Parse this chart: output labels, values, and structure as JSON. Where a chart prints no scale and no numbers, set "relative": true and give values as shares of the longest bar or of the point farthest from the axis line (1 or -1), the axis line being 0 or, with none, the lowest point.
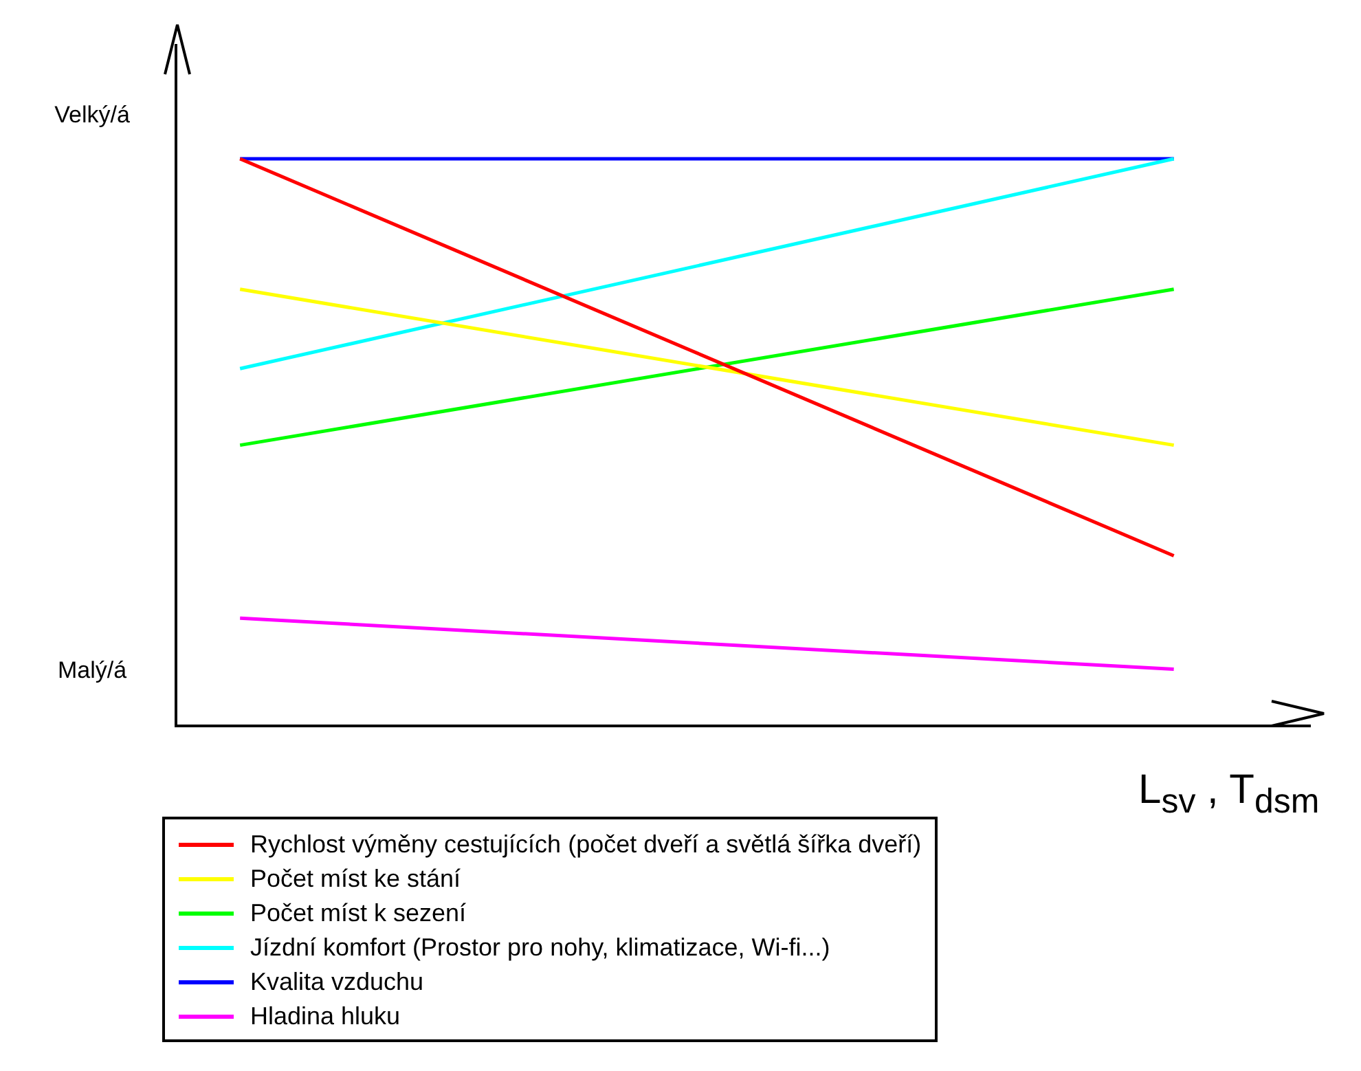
{
  "chart_data": {
    "type": "line",
    "relative": true,
    "xlabel": "L$_{sv}$ , T$_{dsm}$",
    "categories": [
      null,
      null
    ],
    "annotations": [
      "Velký/á",
      "Malý/á"
    ],
    "legend": "bottom",
    "marker": "none",
    "line_style": "solid",
    "series": [
      {
        "name": "Rychlost výměny cestujících (počet dveří a světlá šířka dveří)",
        "color": "#ff0000",
        "values": [
          1,
          0.3
        ]
      },
      {
        "name": "Počet míst ke stání",
        "color": "#ffff00",
        "values": [
          0.77,
          0.495
        ]
      },
      {
        "name": "Počet míst k sezení",
        "color": "#00ff00",
        "values": [
          0.495,
          0.77
        ]
      },
      {
        "name": "Jízdní komfort (Prostor pro nohy, klimatizace, Wi-fi...)",
        "color": "#00ffff",
        "values": [
          0.63,
          1
        ]
      },
      {
        "name": "Kvalita vzduchu",
        "color": "#0000ff",
        "values": [
          1,
          1
        ]
      },
      {
        "name": "Hladina hluku",
        "color": "#ff00ff",
        "values": [
          0.19,
          0.1
        ]
      }
    ]
  }
}
